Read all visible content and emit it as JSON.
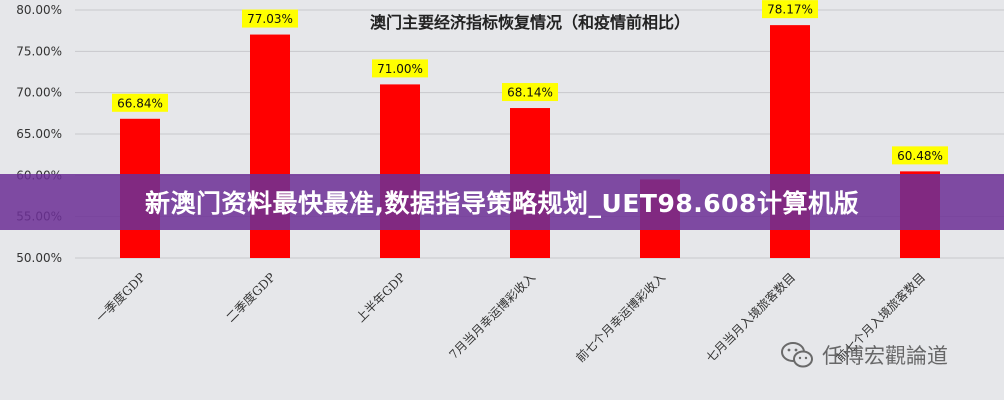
{
  "chart_data": {
    "type": "bar",
    "title": "澳门主要经济指标恢复情况（和疫情前相比）",
    "categories": [
      "一季度GDP",
      "二季度GDP",
      "上半年GDP",
      "7月当月幸运博彩收入",
      "前七个月幸运博彩收入",
      "七月当月入境旅客数目",
      "前七个月入境旅客数目"
    ],
    "values": [
      66.84,
      77.03,
      71.0,
      68.14,
      59.5,
      78.17,
      60.48
    ],
    "data_labels": [
      "66.84%",
      "77.03%",
      "71.00%",
      "68.14%",
      "",
      "78.17%",
      "60.48%"
    ],
    "ylim": [
      50,
      80
    ],
    "yticks": [
      "50.00%",
      "55.00%",
      "60.00%",
      "65.00%",
      "70.00%",
      "75.00%",
      "80.00%"
    ],
    "grid": true,
    "bar_color": "#ff0000",
    "label_bg_color": "#ffff00"
  },
  "banner": {
    "text": "新澳门资料最快最准,数据指导策略规划_UET98.608计算机版"
  },
  "watermark": {
    "text": "任博宏觀論道",
    "icon": "wechat-icon"
  }
}
